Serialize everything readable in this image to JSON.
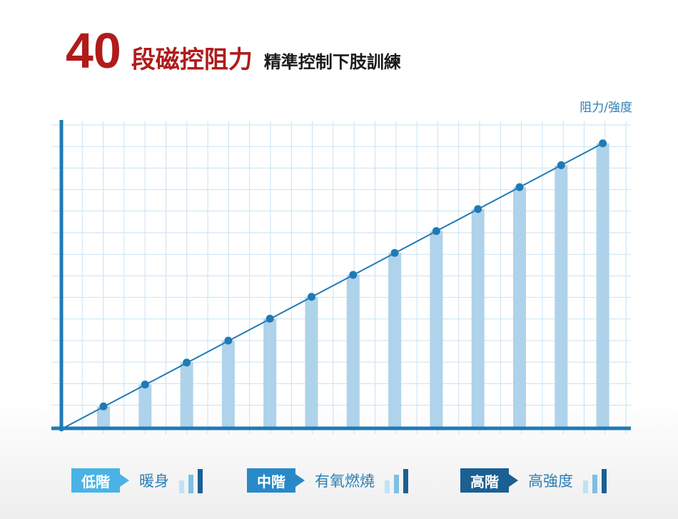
{
  "header": {
    "number": "40",
    "red_title": "段磁控阻力",
    "subtitle": "精準控制下肢訓練"
  },
  "chart_data": {
    "type": "bar",
    "ylabel": "阻力/強度",
    "values": [
      1,
      2,
      3,
      4,
      5,
      6,
      7,
      8,
      9,
      10,
      11,
      12,
      13
    ],
    "ylim": [
      0,
      14
    ],
    "grid": true,
    "overlay_line": true
  },
  "legend": [
    {
      "tag": "低階",
      "desc": "暖身",
      "color": "#4ab3e6",
      "level": 1
    },
    {
      "tag": "中階",
      "desc": "有氧燃燒",
      "color": "#2889c8",
      "level": 2
    },
    {
      "tag": "高階",
      "desc": "高強度",
      "color": "#1b5f93",
      "level": 3
    }
  ]
}
